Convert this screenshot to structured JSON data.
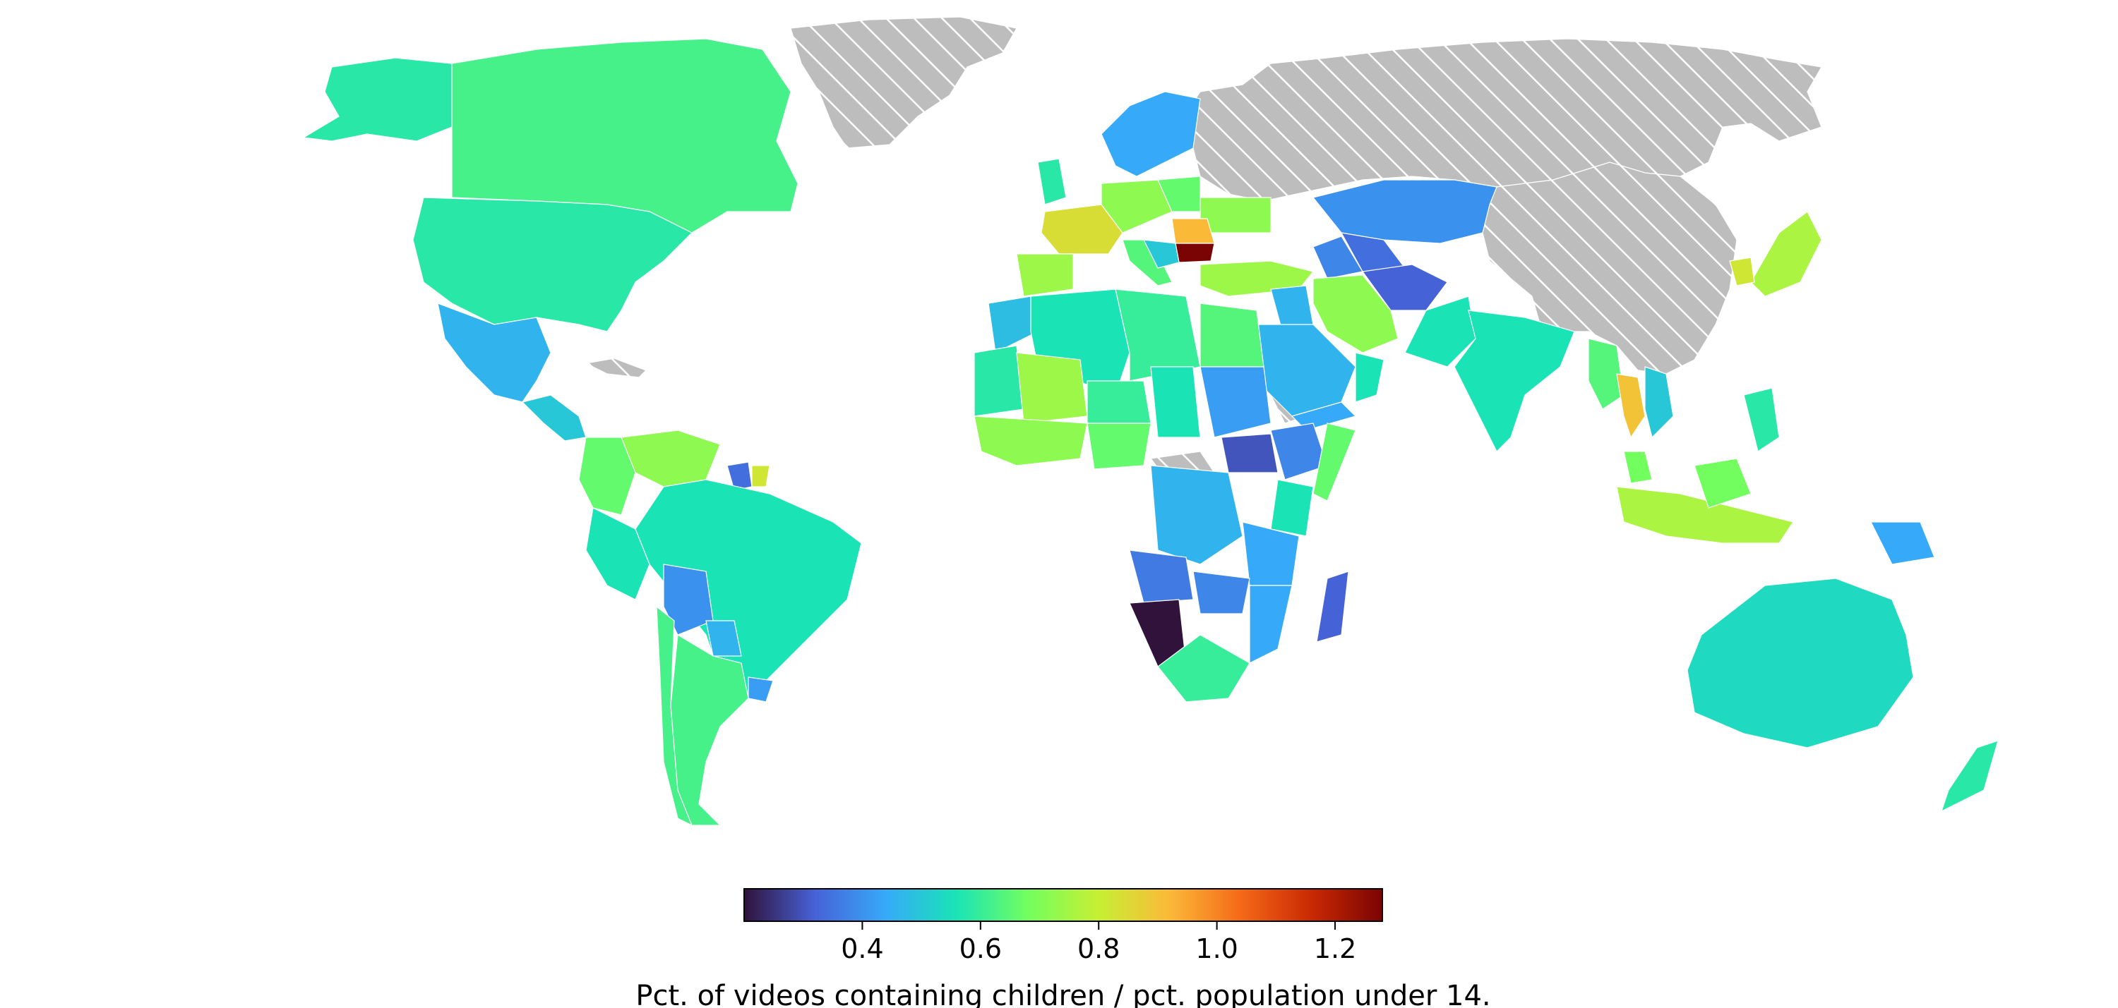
{
  "map": {
    "legend_title": "Pct. of videos containing children / pct. population under 14.",
    "no_data_pattern": "hatched-grey",
    "no_data_color": "#bdbdbd"
  },
  "colorbar": {
    "colormap": "turbo",
    "range": [
      0.2,
      1.28
    ],
    "ticks": [
      {
        "value": 0.4,
        "label": "0.4"
      },
      {
        "value": 0.6,
        "label": "0.6"
      },
      {
        "value": 0.8,
        "label": "0.8"
      },
      {
        "value": 1.0,
        "label": "1.0"
      },
      {
        "value": 1.2,
        "label": "1.2"
      }
    ],
    "stops": [
      "#30123b",
      "#4662d7",
      "#36aaf9",
      "#1ae4b6",
      "#72fe5e",
      "#c7ef34",
      "#fbb938",
      "#f56918",
      "#c92903",
      "#7a0403"
    ]
  },
  "chart_data": {
    "type": "heatmap",
    "title": "",
    "xlabel": "",
    "ylabel": "",
    "color_scale_label": "Pct. of videos containing children / pct. population under 14.",
    "color_range": [
      0.2,
      1.28
    ],
    "regions": [
      {
        "name": "Bulgaria",
        "value": 1.28
      },
      {
        "name": "Romania",
        "value": 0.92
      },
      {
        "name": "Thailand",
        "value": 0.9
      },
      {
        "name": "France",
        "value": 0.84
      },
      {
        "name": "Japan",
        "value": 0.76
      },
      {
        "name": "Indonesia",
        "value": 0.76
      },
      {
        "name": "Turkey",
        "value": 0.74
      },
      {
        "name": "Iran",
        "value": 0.72
      },
      {
        "name": "Spain",
        "value": 0.74
      },
      {
        "name": "Mali",
        "value": 0.74
      },
      {
        "name": "Venezuela",
        "value": 0.72
      },
      {
        "name": "Germany",
        "value": 0.72
      },
      {
        "name": "Canada",
        "value": 0.62
      },
      {
        "name": "Greenland",
        "value": null
      },
      {
        "name": "Russia",
        "value": null
      },
      {
        "name": "China",
        "value": null
      },
      {
        "name": "United States",
        "value": 0.58
      },
      {
        "name": "Brazil",
        "value": 0.56
      },
      {
        "name": "Australia",
        "value": 0.54
      },
      {
        "name": "India",
        "value": 0.56
      },
      {
        "name": "Argentina",
        "value": 0.62
      },
      {
        "name": "Mexico",
        "value": 0.46
      },
      {
        "name": "Saudi Arabia",
        "value": 0.46
      },
      {
        "name": "Egypt",
        "value": 0.64
      },
      {
        "name": "Algeria",
        "value": 0.56
      },
      {
        "name": "Nigeria",
        "value": 0.66
      },
      {
        "name": "Sudan",
        "value": 0.42
      },
      {
        "name": "DR Congo",
        "value": 0.46
      },
      {
        "name": "Kazakhstan",
        "value": 0.4
      },
      {
        "name": "Afghanistan",
        "value": 0.32
      },
      {
        "name": "Bolivia",
        "value": 0.4
      },
      {
        "name": "South Sudan",
        "value": 0.3
      },
      {
        "name": "Angola",
        "value": 0.36
      },
      {
        "name": "Namibia",
        "value": 0.2
      },
      {
        "name": "South Africa",
        "value": 0.6
      },
      {
        "name": "Madagascar",
        "value": 0.32
      },
      {
        "name": "Kenya",
        "value": 0.56
      },
      {
        "name": "Somalia",
        "value": 0.66
      },
      {
        "name": "Colombia",
        "value": 0.66
      },
      {
        "name": "Peru",
        "value": 0.56
      },
      {
        "name": "Chile",
        "value": 0.62
      },
      {
        "name": "New Zealand",
        "value": 0.58
      },
      {
        "name": "Sweden",
        "value": 0.44
      },
      {
        "name": "Norway",
        "value": 0.44
      },
      {
        "name": "Finland",
        "value": 0.44
      },
      {
        "name": "United Kingdom",
        "value": 0.58
      },
      {
        "name": "Pakistan",
        "value": 0.56
      },
      {
        "name": "Papua New Guinea",
        "value": 0.44
      },
      {
        "name": "Philippines",
        "value": 0.58
      },
      {
        "name": "Malaysia",
        "value": 0.68
      },
      {
        "name": "Italy",
        "value": 0.64
      },
      {
        "name": "Poland",
        "value": 0.66
      },
      {
        "name": "Ukraine",
        "value": 0.72
      },
      {
        "name": "Iraq",
        "value": 0.46
      },
      {
        "name": "Yemen",
        "value": 0.44
      },
      {
        "name": "Oman",
        "value": 0.56
      },
      {
        "name": "Ethiopia",
        "value": 0.38
      },
      {
        "name": "Tanzania",
        "value": 0.44
      },
      {
        "name": "Mozambique",
        "value": 0.44
      },
      {
        "name": "Zambia",
        "value": 0.38
      },
      {
        "name": "Chad",
        "value": 0.56
      },
      {
        "name": "Niger",
        "value": 0.6
      },
      {
        "name": "Libya",
        "value": 0.6
      },
      {
        "name": "Morocco",
        "value": 0.48
      },
      {
        "name": "Mauritania",
        "value": 0.58
      },
      {
        "name": "Myanmar",
        "value": 0.64
      },
      {
        "name": "Vietnam",
        "value": 0.5
      },
      {
        "name": "Uzbekistan",
        "value": 0.34
      },
      {
        "name": "Turkmenistan",
        "value": 0.38
      },
      {
        "name": "Guyana",
        "value": 0.34
      },
      {
        "name": "Suriname",
        "value": 0.82
      },
      {
        "name": "Paraguay",
        "value": 0.46
      },
      {
        "name": "Uruguay",
        "value": 0.42
      }
    ]
  }
}
